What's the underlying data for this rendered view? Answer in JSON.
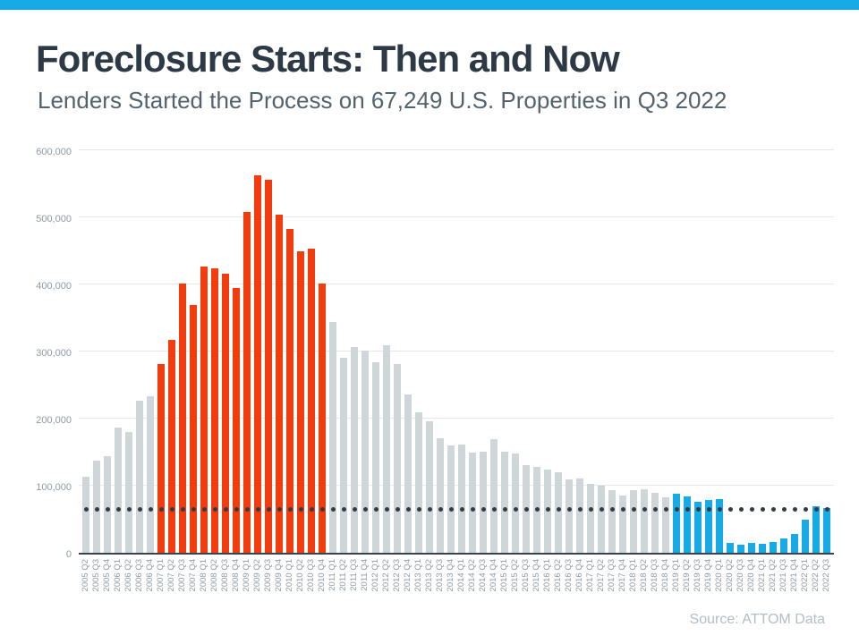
{
  "page": {
    "background": "#ffffff",
    "top_bar_color": "#17aae8"
  },
  "header": {
    "title": "Foreclosure Starts: Then and Now",
    "subtitle": "Lenders Started the Process on 67,249 U.S. Properties in Q3 2022"
  },
  "footer": {
    "source": "Source: ATTOM Data"
  },
  "chart_data": {
    "type": "bar",
    "title": "Foreclosure Starts: Then and Now",
    "subtitle": "Lenders Started the Process on 67,249 U.S. Properties in Q3 2022",
    "xlabel": "",
    "ylabel": "",
    "ylim": [
      0,
      600000
    ],
    "grid": true,
    "categories": [
      "2005 Q2",
      "2005 Q3",
      "2005 Q4",
      "2006 Q1",
      "2006 Q2",
      "2006 Q3",
      "2006 Q4",
      "2007 Q1",
      "2007 Q2",
      "2007 Q3",
      "2007 Q4",
      "2008 Q1",
      "2008 Q2",
      "2008 Q3",
      "2008 Q4",
      "2009 Q1",
      "2009 Q2",
      "2009 Q3",
      "2009 Q4",
      "2010 Q1",
      "2010 Q2",
      "2010 Q3",
      "2010 Q4",
      "2011 Q1",
      "2011 Q2",
      "2011 Q3",
      "2011 Q4",
      "2012 Q1",
      "2012 Q2",
      "2012 Q3",
      "2012 Q4",
      "2013 Q1",
      "2013 Q2",
      "2013 Q3",
      "2013 Q4",
      "2014 Q1",
      "2014 Q2",
      "2014 Q3",
      "2014 Q4",
      "2015 Q1",
      "2015 Q2",
      "2015 Q3",
      "2015 Q4",
      "2016 Q1",
      "2016 Q2",
      "2016 Q3",
      "2016 Q4",
      "2017 Q1",
      "2017 Q2",
      "2017 Q3",
      "2017 Q4",
      "2018 Q1",
      "2018 Q2",
      "2018 Q3",
      "2018 Q4",
      "2019 Q1",
      "2019 Q2",
      "2019 Q3",
      "2019 Q4",
      "2020 Q1",
      "2020 Q2",
      "2020 Q3",
      "2020 Q4",
      "2021 Q1",
      "2021 Q2",
      "2021 Q3",
      "2021 Q4",
      "2022 Q1",
      "2022 Q2",
      "2022 Q3"
    ],
    "values": [
      113000,
      137000,
      144000,
      187000,
      180000,
      227000,
      234000,
      281000,
      318000,
      402000,
      370000,
      427000,
      424000,
      416000,
      395000,
      508000,
      563000,
      556000,
      504000,
      483000,
      449000,
      453000,
      402000,
      344000,
      291000,
      307000,
      302000,
      284000,
      309000,
      282000,
      236000,
      209000,
      196000,
      171000,
      160000,
      162000,
      149000,
      151000,
      169000,
      151000,
      148000,
      131000,
      128000,
      124000,
      120000,
      109000,
      111000,
      103000,
      100000,
      93000,
      86000,
      93000,
      95000,
      89000,
      83000,
      88000,
      84000,
      76000,
      79000,
      80000,
      15000,
      12000,
      15000,
      14000,
      16000,
      21000,
      28000,
      50000,
      70000,
      67249
    ],
    "bar_colors": [
      "gray",
      "gray",
      "gray",
      "gray",
      "gray",
      "gray",
      "gray",
      "red",
      "red",
      "red",
      "red",
      "red",
      "red",
      "red",
      "red",
      "red",
      "red",
      "red",
      "red",
      "red",
      "red",
      "red",
      "red",
      "gray",
      "gray",
      "gray",
      "gray",
      "gray",
      "gray",
      "gray",
      "gray",
      "gray",
      "gray",
      "gray",
      "gray",
      "gray",
      "gray",
      "gray",
      "gray",
      "gray",
      "gray",
      "gray",
      "gray",
      "gray",
      "gray",
      "gray",
      "gray",
      "gray",
      "gray",
      "gray",
      "gray",
      "gray",
      "gray",
      "gray",
      "gray",
      "blue",
      "blue",
      "blue",
      "blue",
      "blue",
      "blue",
      "blue",
      "blue",
      "blue",
      "blue",
      "blue",
      "blue",
      "blue",
      "blue",
      "blue"
    ],
    "color_map": {
      "gray": "#cfd6d9",
      "red": "#f23c0d",
      "blue": "#16abe7"
    },
    "y_ticks": [
      {
        "value": 0,
        "label": "0"
      },
      {
        "value": 100000,
        "label": "100,000"
      },
      {
        "value": 200000,
        "label": "200,000"
      },
      {
        "value": 300000,
        "label": "300,000"
      },
      {
        "value": 400000,
        "label": "400,000"
      },
      {
        "value": 500000,
        "label": "500,000"
      },
      {
        "value": 600000,
        "label": "600,000"
      }
    ],
    "reference_line": {
      "value": 67249,
      "style": "dotted",
      "color": "#333c44"
    },
    "source": "Source: ATTOM Data"
  }
}
